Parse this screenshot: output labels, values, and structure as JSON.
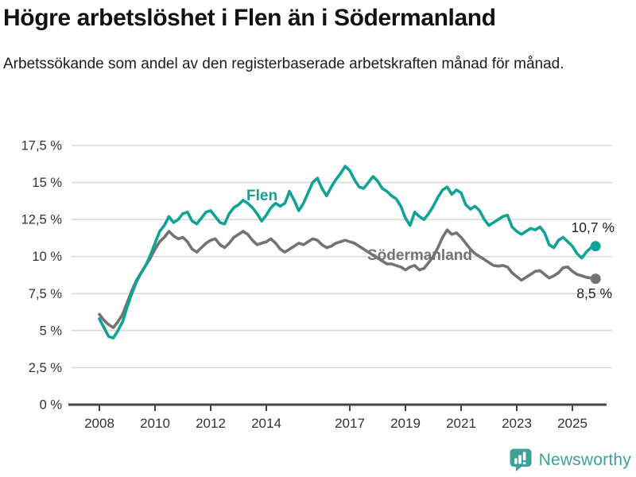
{
  "title": "Högre arbetslöshet i Flen än i Södermanland",
  "subtitle": "Arbetssökande som andel av den registerbaserade arbetskraften månad för månad.",
  "footer": {
    "brand": "Newsworthy",
    "icon": "newsworthy-bubble-barchart-icon"
  },
  "colors": {
    "flen": "#10a297",
    "sodermanland": "#737373",
    "grid": "#d9d9d9",
    "axis": "#454545",
    "tick_label": "#333333",
    "annotation": "#222222",
    "brand_teal": "#3da19b"
  },
  "chart_data": {
    "type": "line",
    "title": "Högre arbetslöshet i Flen än i Södermanland",
    "xlabel": "",
    "ylabel": "",
    "x_start": 2008,
    "x_step": 0.166667,
    "x_tick_years": [
      2008,
      2010,
      2012,
      2014,
      2017,
      2019,
      2021,
      2023,
      2025
    ],
    "x_tick_labels": [
      "2008",
      "2010",
      "2012",
      "2014",
      "2017",
      "2019",
      "2021",
      "2023",
      "2025"
    ],
    "y_ticks": [
      0,
      2.5,
      5,
      7.5,
      10,
      12.5,
      15,
      17.5
    ],
    "y_tick_labels": [
      "0 %",
      "2,5 %",
      "5 %",
      "7,5 %",
      "10 %",
      "12,5 %",
      "15 %",
      "17,5 %"
    ],
    "ylim": [
      0,
      17.5
    ],
    "grid": "horizontal",
    "legend_position": "inline-labels",
    "series": [
      {
        "name": "Flen",
        "color": "#10a297",
        "end_label": "10,7 %",
        "end_value": 10.7,
        "values": [
          5.8,
          5.2,
          4.6,
          4.5,
          5.0,
          5.6,
          6.6,
          7.5,
          8.3,
          8.9,
          9.4,
          10.1,
          10.9,
          11.7,
          12.1,
          12.7,
          12.3,
          12.5,
          12.9,
          13.0,
          12.4,
          12.2,
          12.6,
          13.0,
          13.1,
          12.7,
          12.3,
          12.2,
          12.9,
          13.3,
          13.5,
          13.8,
          13.6,
          13.3,
          12.9,
          12.4,
          12.8,
          13.3,
          13.6,
          13.4,
          13.6,
          14.4,
          13.8,
          13.1,
          13.6,
          14.3,
          15.0,
          15.3,
          14.6,
          14.1,
          14.7,
          15.2,
          15.6,
          16.1,
          15.8,
          15.2,
          14.7,
          14.6,
          15.0,
          15.4,
          15.1,
          14.6,
          14.4,
          14.1,
          13.9,
          13.4,
          12.6,
          12.1,
          13.0,
          12.7,
          12.5,
          12.9,
          13.4,
          14.0,
          14.5,
          14.7,
          14.2,
          14.5,
          14.3,
          13.5,
          13.2,
          13.4,
          13.1,
          12.5,
          12.1,
          12.3,
          12.5,
          12.7,
          12.8,
          12.0,
          11.7,
          11.5,
          11.7,
          11.9,
          11.8,
          12.0,
          11.6,
          10.8,
          10.6,
          11.1,
          11.3,
          11.0,
          10.7,
          10.2,
          9.9,
          10.3,
          10.6,
          10.7
        ]
      },
      {
        "name": "Södermanland",
        "color": "#737373",
        "end_label": "8,5 %",
        "end_value": 8.5,
        "values": [
          6.1,
          5.7,
          5.4,
          5.2,
          5.6,
          6.1,
          6.9,
          7.7,
          8.4,
          8.9,
          9.4,
          9.9,
          10.5,
          11.0,
          11.3,
          11.7,
          11.4,
          11.2,
          11.3,
          11.0,
          10.5,
          10.3,
          10.6,
          10.9,
          11.1,
          11.2,
          10.8,
          10.6,
          10.9,
          11.3,
          11.5,
          11.7,
          11.5,
          11.1,
          10.8,
          10.9,
          11.0,
          11.2,
          10.9,
          10.5,
          10.3,
          10.5,
          10.7,
          10.9,
          10.8,
          11.0,
          11.2,
          11.1,
          10.8,
          10.6,
          10.7,
          10.9,
          11.0,
          11.1,
          11.0,
          10.9,
          10.7,
          10.5,
          10.3,
          10.1,
          9.9,
          9.7,
          9.5,
          9.5,
          9.4,
          9.3,
          9.1,
          9.3,
          9.4,
          9.1,
          9.2,
          9.6,
          10.0,
          10.6,
          11.3,
          11.8,
          11.5,
          11.6,
          11.3,
          10.9,
          10.5,
          10.2,
          10.0,
          9.8,
          9.6,
          9.4,
          9.35,
          9.4,
          9.3,
          8.9,
          8.65,
          8.4,
          8.6,
          8.8,
          9.0,
          9.05,
          8.8,
          8.55,
          8.7,
          8.9,
          9.25,
          9.3,
          9.0,
          8.8,
          8.7,
          8.6,
          8.55,
          8.5
        ]
      }
    ]
  }
}
